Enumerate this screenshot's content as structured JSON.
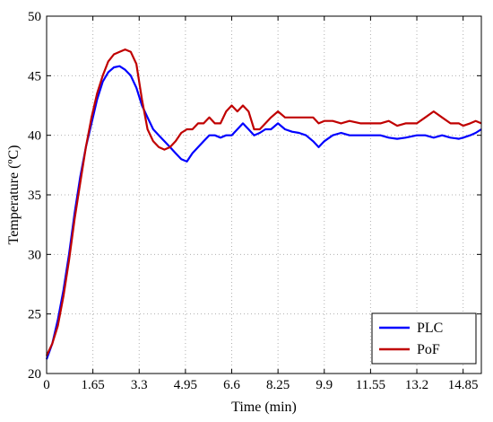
{
  "chart_data": {
    "type": "line",
    "xlabel": "Time (min)",
    "ylabel": "Temperature (ºC)",
    "xlim": [
      0,
      15.5
    ],
    "ylim": [
      20,
      50
    ],
    "x_ticks": [
      0,
      1.65,
      3.3,
      4.95,
      6.6,
      8.25,
      9.9,
      11.55,
      13.2,
      14.85
    ],
    "x_tick_labels": [
      "0",
      "1.65",
      "3.3",
      "4.95",
      "6.6",
      "8.25",
      "9.9",
      "11.55",
      "13.2",
      "14.85"
    ],
    "y_ticks": [
      20,
      25,
      30,
      35,
      40,
      45,
      50
    ],
    "y_tick_labels": [
      "20",
      "25",
      "30",
      "35",
      "40",
      "45",
      "50"
    ],
    "grid": true,
    "legend_position": "bottom-right",
    "series": [
      {
        "name": "PLC",
        "color": "#0000ff",
        "x": [
          0,
          0.2,
          0.4,
          0.6,
          0.8,
          1.0,
          1.2,
          1.4,
          1.6,
          1.8,
          2.0,
          2.2,
          2.4,
          2.6,
          2.8,
          3.0,
          3.2,
          3.4,
          3.6,
          3.8,
          4.0,
          4.2,
          4.4,
          4.6,
          4.8,
          5.0,
          5.2,
          5.4,
          5.6,
          5.8,
          6.0,
          6.2,
          6.4,
          6.6,
          6.8,
          7.0,
          7.2,
          7.4,
          7.6,
          7.8,
          8.0,
          8.25,
          8.5,
          8.75,
          9.0,
          9.25,
          9.5,
          9.7,
          9.9,
          10.2,
          10.5,
          10.8,
          11.2,
          11.55,
          11.9,
          12.2,
          12.5,
          12.8,
          13.2,
          13.5,
          13.8,
          14.1,
          14.4,
          14.7,
          14.85,
          15.1,
          15.3,
          15.5
        ],
        "y": [
          21.2,
          22.5,
          24.5,
          27.0,
          30.0,
          33.5,
          36.5,
          39.0,
          41.0,
          43.0,
          44.5,
          45.3,
          45.7,
          45.8,
          45.5,
          45.0,
          44.0,
          42.5,
          41.5,
          40.5,
          40.0,
          39.5,
          39.0,
          38.5,
          38.0,
          37.8,
          38.5,
          39.0,
          39.5,
          40.0,
          40.0,
          39.8,
          40.0,
          40.0,
          40.5,
          41.0,
          40.5,
          40.0,
          40.2,
          40.5,
          40.5,
          41.0,
          40.5,
          40.3,
          40.2,
          40.0,
          39.5,
          39.0,
          39.5,
          40.0,
          40.2,
          40.0,
          40.0,
          40.0,
          40.0,
          39.8,
          39.7,
          39.8,
          40.0,
          40.0,
          39.8,
          40.0,
          39.8,
          39.7,
          39.8,
          40.0,
          40.2,
          40.5
        ]
      },
      {
        "name": "PoF",
        "color": "#c00000",
        "x": [
          0,
          0.2,
          0.4,
          0.6,
          0.8,
          1.0,
          1.2,
          1.4,
          1.6,
          1.8,
          2.0,
          2.2,
          2.4,
          2.6,
          2.8,
          3.0,
          3.2,
          3.4,
          3.6,
          3.8,
          4.0,
          4.2,
          4.4,
          4.6,
          4.8,
          5.0,
          5.2,
          5.4,
          5.6,
          5.8,
          6.0,
          6.2,
          6.4,
          6.6,
          6.8,
          7.0,
          7.2,
          7.4,
          7.6,
          7.8,
          8.0,
          8.25,
          8.5,
          8.75,
          9.0,
          9.25,
          9.5,
          9.7,
          9.9,
          10.2,
          10.5,
          10.8,
          11.2,
          11.55,
          11.9,
          12.2,
          12.5,
          12.8,
          13.2,
          13.5,
          13.8,
          14.1,
          14.4,
          14.7,
          14.85,
          15.1,
          15.3,
          15.5
        ],
        "y": [
          21.5,
          22.5,
          24.0,
          26.5,
          29.5,
          33.0,
          36.0,
          39.0,
          41.5,
          43.5,
          45.0,
          46.2,
          46.8,
          47.0,
          47.2,
          47.0,
          46.0,
          43.0,
          40.5,
          39.5,
          39.0,
          38.8,
          39.0,
          39.5,
          40.2,
          40.5,
          40.5,
          41.0,
          41.0,
          41.5,
          41.0,
          41.0,
          42.0,
          42.5,
          42.0,
          42.5,
          42.0,
          40.5,
          40.5,
          41.0,
          41.5,
          42.0,
          41.5,
          41.5,
          41.5,
          41.5,
          41.5,
          41.0,
          41.2,
          41.2,
          41.0,
          41.2,
          41.0,
          41.0,
          41.0,
          41.2,
          40.8,
          41.0,
          41.0,
          41.5,
          42.0,
          41.5,
          41.0,
          41.0,
          40.8,
          41.0,
          41.2,
          41.0
        ]
      }
    ]
  }
}
